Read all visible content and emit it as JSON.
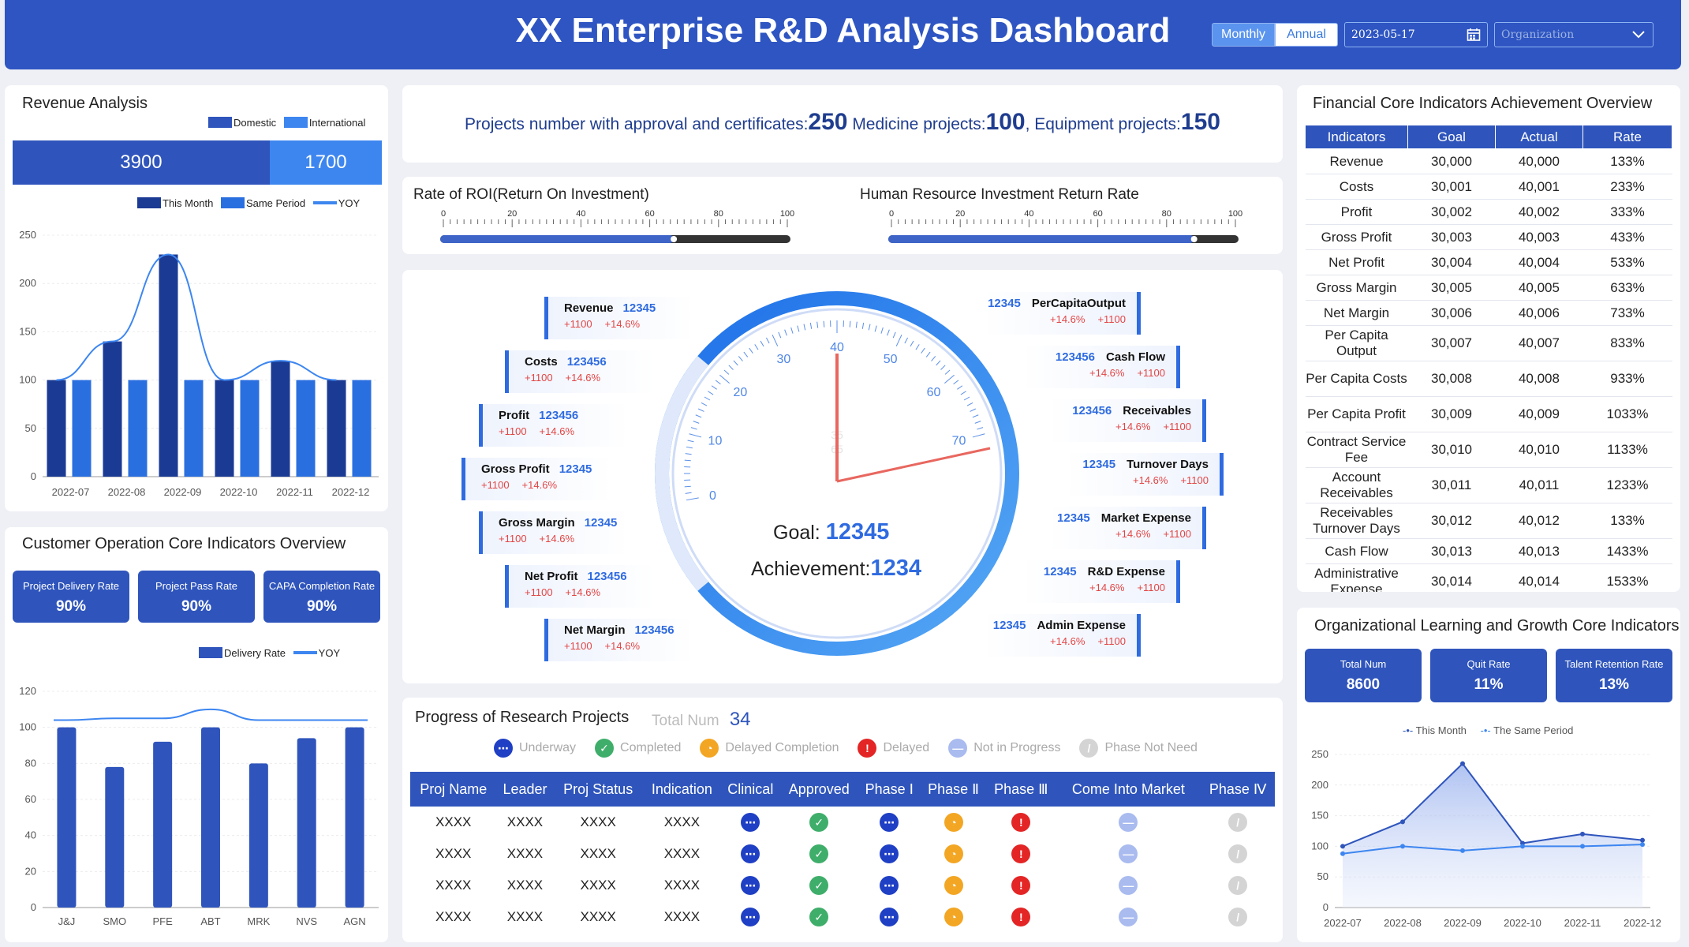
{
  "header": {
    "title": "XX Enterprise R&D Analysis Dashboard",
    "monthly": "Monthly",
    "annual": "Annual",
    "date": "2023-05-17",
    "org_placeholder": "Organization"
  },
  "revenue": {
    "title": "Revenue Analysis",
    "legend_domestic": "Domestic",
    "legend_international": "International",
    "domestic": "3900",
    "international": "1700"
  },
  "chart_data": [
    {
      "type": "bar",
      "title": "Revenue Analysis",
      "categories": [
        "2022-07",
        "2022-08",
        "2022-09",
        "2022-10",
        "2022-11",
        "2022-12"
      ],
      "series": [
        {
          "name": "This Month",
          "values": [
            100,
            140,
            230,
            100,
            120,
            100
          ]
        },
        {
          "name": "Same Period",
          "values": [
            100,
            100,
            100,
            100,
            100,
            100
          ]
        },
        {
          "name": "YOY",
          "type": "line",
          "values": [
            100,
            140,
            230,
            100,
            120,
            100
          ]
        }
      ],
      "ylim": [
        0,
        250
      ],
      "yticks": [
        "0",
        "50",
        "100",
        "150",
        "200",
        "250"
      ]
    },
    {
      "type": "bar",
      "title": "Customer Operation Core Indicators Overview",
      "categories": [
        "J&J",
        "SMO",
        "PFE",
        "ABT",
        "MRK",
        "NVS",
        "AGN"
      ],
      "series": [
        {
          "name": "Delivery Rate",
          "values": [
            100,
            78,
            92,
            100,
            80,
            94,
            100
          ]
        },
        {
          "name": "YOY",
          "type": "line",
          "values": [
            104,
            105,
            105,
            110,
            104,
            104,
            104
          ]
        }
      ],
      "ylim": [
        0,
        120
      ],
      "yticks": [
        "0",
        "20",
        "40",
        "60",
        "80",
        "100",
        "120"
      ]
    },
    {
      "type": "line",
      "title": "Organizational Learning and Growth Core Indicators",
      "categories": [
        "2022-07",
        "2022-08",
        "2022-09",
        "2022-10",
        "2022-11",
        "2022-12"
      ],
      "series": [
        {
          "name": "This Month",
          "values": [
            100,
            140,
            235,
            105,
            120,
            110
          ]
        },
        {
          "name": "The Same Period",
          "values": [
            88,
            100,
            93,
            100,
            100,
            103
          ]
        }
      ],
      "ylim": [
        0,
        250
      ],
      "yticks": [
        "0",
        "50",
        "100",
        "150",
        "200",
        "250"
      ]
    }
  ],
  "legend": {
    "this_month": "This Month",
    "same_period": "Same Period",
    "yoy": "YOY",
    "delivery": "Delivery Rate",
    "lg_this": "This Month",
    "lg_same": "The Same Period"
  },
  "customer": {
    "title": "Customer Operation Core Indicators Overview",
    "kpis": [
      {
        "label": "Project Delivery Rate",
        "value": "90%"
      },
      {
        "label": "Project Pass Rate",
        "value": "90%"
      },
      {
        "label": "CAPA Completion Rate",
        "value": "90%"
      }
    ]
  },
  "projects_banner": {
    "t1": "Projects number with approval and certificates:",
    "v1": "250",
    "t2": " Medicine projects:",
    "v2": "100",
    "t3": ", Equipment projects:",
    "v3": "150"
  },
  "roi": {
    "title": "Rate of ROI(Return On Investment)",
    "value": 67,
    "ticks": [
      "0",
      "20",
      "40",
      "60",
      "80",
      "100"
    ]
  },
  "hr": {
    "title": "Human Resource Investment Return Rate",
    "value": 88,
    "ticks": [
      "0",
      "20",
      "40",
      "60",
      "80",
      "100"
    ]
  },
  "gauge": {
    "ticks": [
      "0",
      "10",
      "20",
      "30",
      "40",
      "50",
      "60",
      "70"
    ],
    "goal_label": "Goal:",
    "goal": "12345",
    "ach_label": "Achievement:",
    "ach": "1234",
    "center_a": "35",
    "center_b": "65"
  },
  "left_ind": [
    {
      "name": "Revenue",
      "value": "12345",
      "a": "+1100",
      "b": "+14.6%"
    },
    {
      "name": "Costs",
      "value": "123456",
      "a": "+1100",
      "b": "+14.6%"
    },
    {
      "name": "Profit",
      "value": "123456",
      "a": "+1100",
      "b": "+14.6%"
    },
    {
      "name": "Gross Profit",
      "value": "12345",
      "a": "+1100",
      "b": "+14.6%"
    },
    {
      "name": "Gross Margin",
      "value": "12345",
      "a": "+1100",
      "b": "+14.6%"
    },
    {
      "name": "Net Profit",
      "value": "123456",
      "a": "+1100",
      "b": "+14.6%"
    },
    {
      "name": "Net Margin",
      "value": "123456",
      "a": "+1100",
      "b": "+14.6%"
    }
  ],
  "right_ind": [
    {
      "name": "PerCapitaOutput",
      "value": "12345",
      "a": "+14.6%",
      "b": "+1100"
    },
    {
      "name": "Cash Flow",
      "value": "123456",
      "a": "+14.6%",
      "b": "+1100"
    },
    {
      "name": "Receivables",
      "value": "123456",
      "a": "+14.6%",
      "b": "+1100"
    },
    {
      "name": "Turnover Days",
      "value": "12345",
      "a": "+14.6%",
      "b": "+1100"
    },
    {
      "name": "Market Expense",
      "value": "12345",
      "a": "+14.6%",
      "b": "+1100"
    },
    {
      "name": "R&D Expense",
      "value": "12345",
      "a": "+14.6%",
      "b": "+1100"
    },
    {
      "name": "Admin Expense",
      "value": "12345",
      "a": "+14.6%",
      "b": "+1100"
    }
  ],
  "finance": {
    "title": "Financial Core Indicators Achievement Overview",
    "headers": [
      "Indicators",
      "Goal",
      "Actual",
      "Rate"
    ],
    "rows": [
      [
        "Revenue",
        "30,000",
        "40,000",
        "133%"
      ],
      [
        "Costs",
        "30,001",
        "40,001",
        "233%"
      ],
      [
        "Profit",
        "30,002",
        "40,002",
        "333%"
      ],
      [
        "Gross Profit",
        "30,003",
        "40,003",
        "433%"
      ],
      [
        "Net Profit",
        "30,004",
        "40,004",
        "533%"
      ],
      [
        "Gross Margin",
        "30,005",
        "40,005",
        "633%"
      ],
      [
        "Net Margin",
        "30,006",
        "40,006",
        "733%"
      ],
      [
        "Per Capita Output",
        "30,007",
        "40,007",
        "833%"
      ],
      [
        "Per Capita Costs",
        "30,008",
        "40,008",
        "933%"
      ],
      [
        "Per Capita Profit",
        "30,009",
        "40,009",
        "1033%"
      ],
      [
        "Contract Service Fee",
        "30,010",
        "40,010",
        "1133%"
      ],
      [
        "Account Receivables",
        "30,011",
        "40,011",
        "1233%"
      ],
      [
        "Receivables Turnover Days",
        "30,012",
        "40,012",
        "133%"
      ],
      [
        "Cash Flow",
        "30,013",
        "40,013",
        "1433%"
      ],
      [
        "Administrative Expense",
        "30,014",
        "40,014",
        "1533%"
      ]
    ]
  },
  "progress": {
    "title": "Progress of Research Projects",
    "total_label": "Total Num",
    "total": "34",
    "legend": [
      {
        "k": "u",
        "label": "Underway"
      },
      {
        "k": "c",
        "label": "Completed"
      },
      {
        "k": "d",
        "label": "Delayed Completion"
      },
      {
        "k": "x",
        "label": "Delayed"
      },
      {
        "k": "n",
        "label": "Not in Progress"
      },
      {
        "k": "p",
        "label": "Phase Not Need"
      }
    ],
    "headers": [
      "Proj Name",
      "Leader",
      "Proj Status",
      "Indication",
      "Clinical",
      "Approved",
      "Phase Ⅰ",
      "Phase Ⅱ",
      "Phase Ⅲ",
      "Come Into Market",
      "Phase Ⅳ"
    ],
    "rows": [
      [
        "XXXX",
        "XXXX",
        "XXXX",
        "XXXX"
      ],
      [
        "XXXX",
        "XXXX",
        "XXXX",
        "XXXX"
      ],
      [
        "XXXX",
        "XXXX",
        "XXXX",
        "XXXX"
      ],
      [
        "XXXX",
        "XXXX",
        "XXXX",
        "XXXX"
      ]
    ],
    "statuses": [
      "u",
      "c",
      "u",
      "d",
      "x",
      "n",
      "p"
    ]
  },
  "org": {
    "title": "Organizational Learning and Growth Core Indicators",
    "kpis": [
      {
        "label": "Total Num",
        "value": "8600"
      },
      {
        "label": "Quit Rate",
        "value": "11%"
      },
      {
        "label": "Talent Retention Rate",
        "value": "13%"
      }
    ]
  },
  "colors": {
    "primary": "#2f55bc",
    "accent": "#2f6be0",
    "header": "#2e55c2",
    "needle": "#e8675f"
  }
}
